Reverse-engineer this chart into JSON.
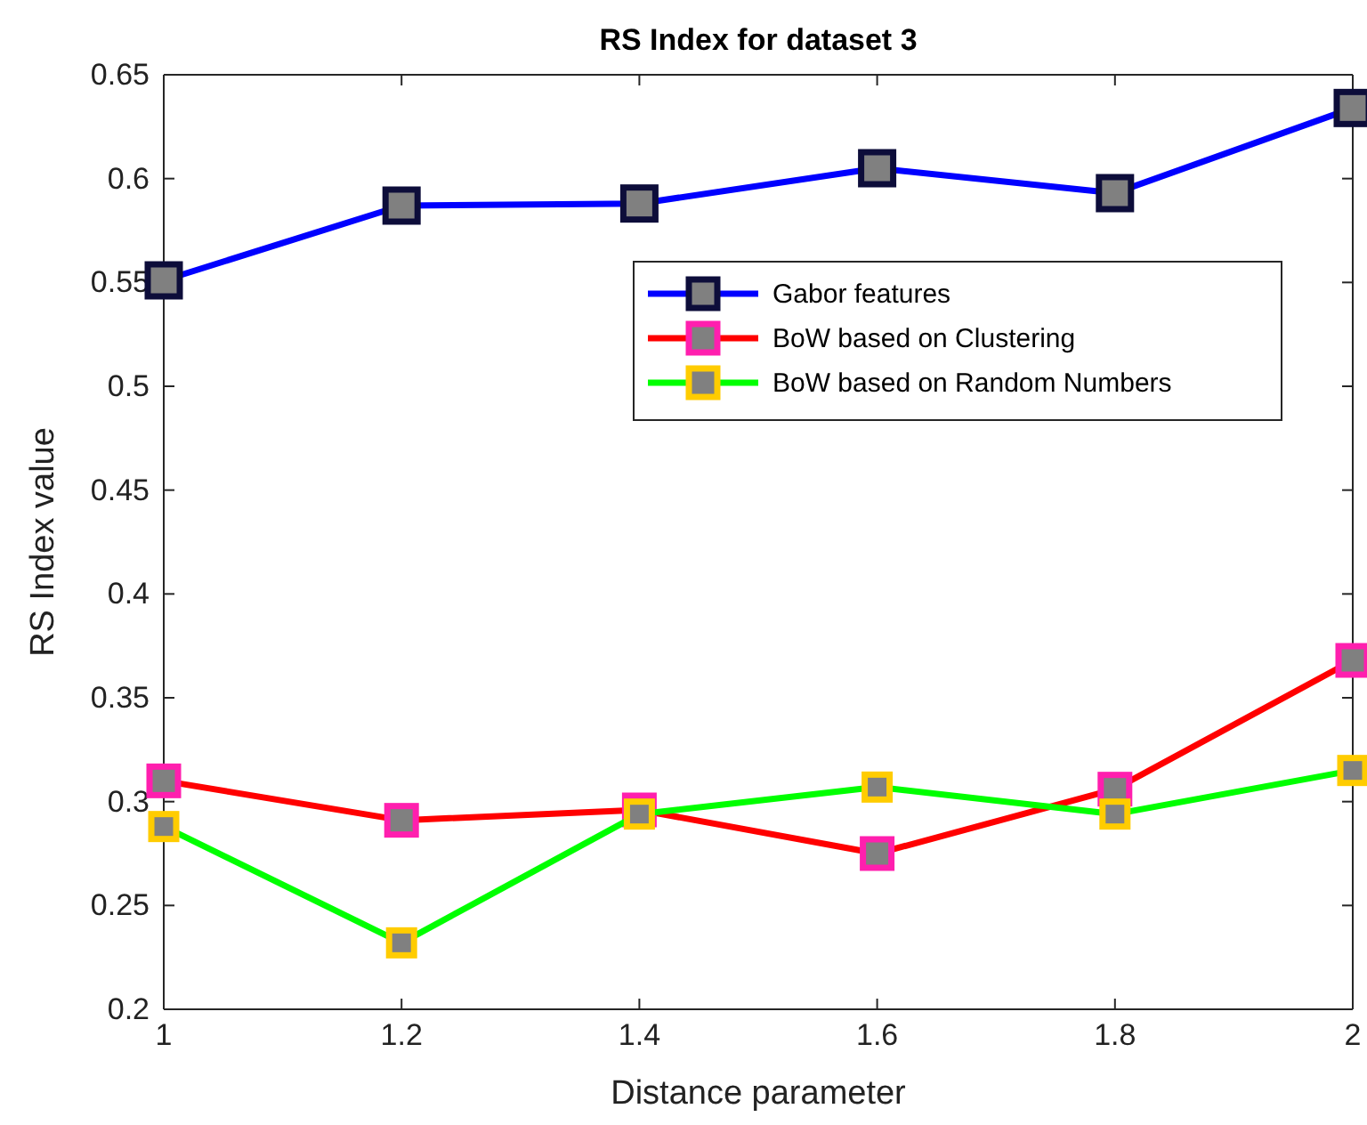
{
  "chart_data": {
    "type": "line",
    "title": "RS Index for dataset 3",
    "xlabel": "Distance parameter",
    "ylabel": "RS Index value",
    "x": [
      1,
      1.2,
      1.4,
      1.6,
      1.8,
      2
    ],
    "xlim": [
      1,
      2
    ],
    "xticks": [
      1,
      1.2,
      1.4,
      1.6,
      1.8,
      2
    ],
    "ylim": [
      0.2,
      0.65
    ],
    "yticks": [
      0.2,
      0.25,
      0.3,
      0.35,
      0.4,
      0.45,
      0.5,
      0.55,
      0.6,
      0.65
    ],
    "grid": false,
    "legend": "top right",
    "marker": "square",
    "line_style": "solid",
    "series": [
      {
        "name": "Gabor features",
        "color": "#0000ff",
        "values": [
          0.551,
          0.587,
          0.588,
          0.605,
          0.593,
          0.634
        ]
      },
      {
        "name": "BoW based on Clustering",
        "color": "#ff0000",
        "values": [
          0.31,
          0.291,
          0.296,
          0.275,
          0.306,
          0.368
        ]
      },
      {
        "name": "BoW based on Random Numbers",
        "color": "#00ff00",
        "values": [
          0.288,
          0.232,
          0.294,
          0.307,
          0.294,
          0.315
        ]
      }
    ]
  }
}
